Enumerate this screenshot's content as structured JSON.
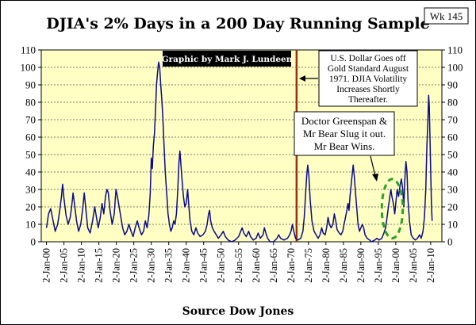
{
  "chart_data": {
    "type": "line",
    "title": "DJIA's 2% Days in a 200 Day Running Sample",
    "week_badge": "Wk 145",
    "credit": "Graphic by Mark J. Lundeen",
    "source": "Source Dow Jones",
    "xlabel": "",
    "ylabel": "",
    "ylim": [
      0,
      110
    ],
    "yticks": [
      0,
      10,
      20,
      30,
      40,
      50,
      60,
      70,
      80,
      90,
      100,
      110
    ],
    "grid": true,
    "tick_labels": [
      "2-Jan-00",
      "2-Jan-05",
      "2-Jan-10",
      "2-Jan-15",
      "2-Jan-20",
      "2-Jan-25",
      "2-Jan-30",
      "2-Jan-35",
      "2-Jan-40",
      "2-Jan-45",
      "2-Jan-50",
      "2-Jan-55",
      "2-Jan-60",
      "2-Jan-65",
      "2-Jan-70",
      "2-Jan-75",
      "2-Jan-80",
      "2-Jan-85",
      "2-Jan-90",
      "2-Jan-95",
      "2-Jan-00",
      "2-Jan-05",
      "2-Jan-10"
    ],
    "tick_years": [
      1900,
      1905,
      1910,
      1915,
      1920,
      1925,
      1930,
      1935,
      1940,
      1945,
      1950,
      1955,
      1960,
      1965,
      1970,
      1975,
      1980,
      1985,
      1990,
      1995,
      2000,
      2005,
      2010
    ],
    "x_range": [
      1898.5,
      2013.2
    ],
    "marker_year": 1971.6,
    "annotations": [
      {
        "name": "gold-standard-note",
        "text": [
          "U.S. Dollar Goes off",
          "Gold Standard August",
          "1971.  DJIA Volatility",
          "Increases Shortly",
          "Thereafter."
        ]
      },
      {
        "name": "greenspan-note",
        "text": [
          "Doctor Greenspan &",
          "Mr Bear Slug it out.",
          "Mr Bear Wins."
        ]
      }
    ],
    "highlight": {
      "year_range": [
        1996,
        2002
      ],
      "y_range": [
        2,
        36
      ]
    },
    "series": [
      {
        "color": "#0a0a8c",
        "points": [
          [
            1900,
            8
          ],
          [
            1900.6,
            16
          ],
          [
            1901.2,
            19
          ],
          [
            1901.8,
            13
          ],
          [
            1902.5,
            6
          ],
          [
            1903.2,
            10
          ],
          [
            1903.8,
            18
          ],
          [
            1904.3,
            26
          ],
          [
            1904.6,
            33
          ],
          [
            1905,
            25
          ],
          [
            1905.6,
            15
          ],
          [
            1906.2,
            10
          ],
          [
            1906.8,
            14
          ],
          [
            1907.2,
            20
          ],
          [
            1907.6,
            28
          ],
          [
            1908,
            22
          ],
          [
            1908.6,
            12
          ],
          [
            1909.2,
            6
          ],
          [
            1909.8,
            10
          ],
          [
            1910.3,
            18
          ],
          [
            1910.8,
            28
          ],
          [
            1911.2,
            20
          ],
          [
            1911.8,
            8
          ],
          [
            1912.5,
            5
          ],
          [
            1913.2,
            12
          ],
          [
            1913.8,
            20
          ],
          [
            1914.3,
            14
          ],
          [
            1914.8,
            8
          ],
          [
            1915.4,
            14
          ],
          [
            1915.9,
            22
          ],
          [
            1916.4,
            16
          ],
          [
            1916.9,
            26
          ],
          [
            1917.3,
            30
          ],
          [
            1917.7,
            28
          ],
          [
            1918.2,
            18
          ],
          [
            1918.8,
            10
          ],
          [
            1919.4,
            16
          ],
          [
            1919.9,
            30
          ],
          [
            1920.3,
            26
          ],
          [
            1920.8,
            20
          ],
          [
            1921.3,
            14
          ],
          [
            1921.8,
            8
          ],
          [
            1922.4,
            4
          ],
          [
            1923,
            6
          ],
          [
            1923.6,
            10
          ],
          [
            1924.2,
            6
          ],
          [
            1924.8,
            3
          ],
          [
            1925.4,
            8
          ],
          [
            1926,
            12
          ],
          [
            1926.5,
            8
          ],
          [
            1927.2,
            4
          ],
          [
            1927.8,
            6
          ],
          [
            1928.3,
            12
          ],
          [
            1928.8,
            8
          ],
          [
            1929.3,
            15
          ],
          [
            1929.7,
            28
          ],
          [
            1930,
            48
          ],
          [
            1930.3,
            42
          ],
          [
            1930.6,
            55
          ],
          [
            1930.9,
            62
          ],
          [
            1931.2,
            75
          ],
          [
            1931.5,
            90
          ],
          [
            1931.8,
            97
          ],
          [
            1932.1,
            103
          ],
          [
            1932.4,
            100
          ],
          [
            1932.7,
            90
          ],
          [
            1933,
            82
          ],
          [
            1933.3,
            72
          ],
          [
            1933.6,
            58
          ],
          [
            1934,
            40
          ],
          [
            1934.4,
            28
          ],
          [
            1934.8,
            16
          ],
          [
            1935.2,
            10
          ],
          [
            1935.6,
            6
          ],
          [
            1936,
            8
          ],
          [
            1936.4,
            12
          ],
          [
            1936.8,
            10
          ],
          [
            1937.2,
            16
          ],
          [
            1937.6,
            30
          ],
          [
            1937.9,
            45
          ],
          [
            1938.2,
            52
          ],
          [
            1938.5,
            44
          ],
          [
            1938.8,
            36
          ],
          [
            1939.2,
            26
          ],
          [
            1939.6,
            20
          ],
          [
            1940,
            22
          ],
          [
            1940.4,
            30
          ],
          [
            1940.7,
            22
          ],
          [
            1941.1,
            12
          ],
          [
            1941.6,
            6
          ],
          [
            1942.2,
            4
          ],
          [
            1942.8,
            8
          ],
          [
            1943.3,
            5
          ],
          [
            1944,
            3
          ],
          [
            1944.8,
            4
          ],
          [
            1945.5,
            6
          ],
          [
            1946,
            10
          ],
          [
            1946.4,
            16
          ],
          [
            1946.7,
            18
          ],
          [
            1947,
            12
          ],
          [
            1947.5,
            8
          ],
          [
            1948,
            6
          ],
          [
            1948.6,
            4
          ],
          [
            1949.2,
            2
          ],
          [
            1950,
            4
          ],
          [
            1950.6,
            6
          ],
          [
            1951.2,
            3
          ],
          [
            1952,
            1
          ],
          [
            1953,
            0
          ],
          [
            1954,
            1
          ],
          [
            1955,
            3
          ],
          [
            1955.6,
            6
          ],
          [
            1956,
            8
          ],
          [
            1956.5,
            5
          ],
          [
            1957.2,
            3
          ],
          [
            1957.9,
            6
          ],
          [
            1958.4,
            3
          ],
          [
            1959.2,
            1
          ],
          [
            1960,
            2
          ],
          [
            1960.6,
            5
          ],
          [
            1961.2,
            2
          ],
          [
            1962,
            4
          ],
          [
            1962.4,
            8
          ],
          [
            1962.8,
            5
          ],
          [
            1963.3,
            2
          ],
          [
            1964,
            0
          ],
          [
            1965,
            0
          ],
          [
            1966,
            2
          ],
          [
            1966.5,
            4
          ],
          [
            1967,
            2
          ],
          [
            1968,
            1
          ],
          [
            1969,
            2
          ],
          [
            1969.6,
            4
          ],
          [
            1970,
            6
          ],
          [
            1970.4,
            10
          ],
          [
            1970.8,
            6
          ],
          [
            1971.3,
            2
          ],
          [
            1972,
            1
          ],
          [
            1972.8,
            2
          ],
          [
            1973.4,
            6
          ],
          [
            1973.8,
            14
          ],
          [
            1974.2,
            28
          ],
          [
            1974.5,
            38
          ],
          [
            1974.8,
            44
          ],
          [
            1975.1,
            38
          ],
          [
            1975.5,
            24
          ],
          [
            1976,
            12
          ],
          [
            1976.6,
            6
          ],
          [
            1977.2,
            4
          ],
          [
            1977.8,
            2
          ],
          [
            1978.3,
            4
          ],
          [
            1978.8,
            8
          ],
          [
            1979.2,
            5
          ],
          [
            1979.8,
            4
          ],
          [
            1980.2,
            8
          ],
          [
            1980.6,
            14
          ],
          [
            1981,
            10
          ],
          [
            1981.5,
            8
          ],
          [
            1982,
            10
          ],
          [
            1982.4,
            16
          ],
          [
            1982.8,
            12
          ],
          [
            1983.2,
            7
          ],
          [
            1983.8,
            5
          ],
          [
            1984.3,
            4
          ],
          [
            1984.8,
            6
          ],
          [
            1985.2,
            10
          ],
          [
            1985.6,
            14
          ],
          [
            1986,
            18
          ],
          [
            1986.3,
            22
          ],
          [
            1986.6,
            18
          ],
          [
            1986.9,
            26
          ],
          [
            1987.2,
            32
          ],
          [
            1987.5,
            38
          ],
          [
            1987.8,
            44
          ],
          [
            1988.1,
            38
          ],
          [
            1988.4,
            30
          ],
          [
            1988.8,
            20
          ],
          [
            1989.2,
            10
          ],
          [
            1989.6,
            6
          ],
          [
            1990,
            8
          ],
          [
            1990.4,
            10
          ],
          [
            1990.8,
            8
          ],
          [
            1991.2,
            4
          ],
          [
            1991.8,
            2
          ],
          [
            1992.5,
            1
          ],
          [
            1993,
            0
          ],
          [
            1994,
            1
          ],
          [
            1994.6,
            2
          ],
          [
            1995.2,
            1
          ],
          [
            1996,
            2
          ],
          [
            1996.6,
            5
          ],
          [
            1997.1,
            8
          ],
          [
            1997.5,
            14
          ],
          [
            1997.9,
            20
          ],
          [
            1998.3,
            26
          ],
          [
            1998.6,
            30
          ],
          [
            1998.9,
            26
          ],
          [
            1999.3,
            22
          ],
          [
            1999.7,
            16
          ],
          [
            2000.1,
            24
          ],
          [
            2000.4,
            30
          ],
          [
            2000.8,
            26
          ],
          [
            2001.2,
            32
          ],
          [
            2001.6,
            36
          ],
          [
            2002,
            30
          ],
          [
            2002.3,
            20
          ],
          [
            2002.6,
            36
          ],
          [
            2002.9,
            46
          ],
          [
            2003.2,
            40
          ],
          [
            2003.5,
            24
          ],
          [
            2003.9,
            12
          ],
          [
            2004.4,
            4
          ],
          [
            2005,
            2
          ],
          [
            2005.6,
            1
          ],
          [
            2006.2,
            2
          ],
          [
            2006.8,
            4
          ],
          [
            2007.3,
            2
          ],
          [
            2007.8,
            6
          ],
          [
            2008.2,
            14
          ],
          [
            2008.6,
            30
          ],
          [
            2008.9,
            55
          ],
          [
            2009.2,
            70
          ],
          [
            2009.4,
            84
          ],
          [
            2009.6,
            78
          ],
          [
            2009.8,
            60
          ],
          [
            2010,
            40
          ],
          [
            2010.2,
            22
          ],
          [
            2010.4,
            12
          ]
        ]
      }
    ]
  }
}
